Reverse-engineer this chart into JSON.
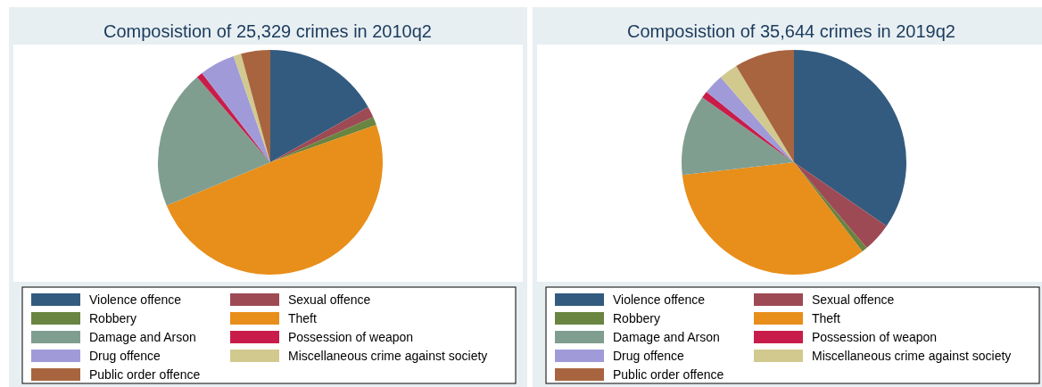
{
  "chart_data": [
    {
      "type": "pie",
      "title": "Composistion of 25,329 crimes in 2010q2",
      "legend": "bottom",
      "categories": [
        "Violence offence",
        "Sexual offence",
        "Robbery",
        "Theft",
        "Damage and Arson",
        "Possession of weapon",
        "Drug offence",
        "Miscellaneous crime against society",
        "Public order offence"
      ],
      "values": [
        16.8,
        1.6,
        1.2,
        49.1,
        20.0,
        0.9,
        5.1,
        1.1,
        4.2
      ],
      "colors": [
        "#335b7f",
        "#9e4a55",
        "#6a8441",
        "#e88e1a",
        "#7f9e90",
        "#c81d4a",
        "#a09bd8",
        "#d2c98e",
        "#a8643f"
      ]
    },
    {
      "type": "pie",
      "title": "Composistion of 35,644 crimes in 2019q2",
      "legend": "bottom",
      "categories": [
        "Violence offence",
        "Sexual offence",
        "Robbery",
        "Theft",
        "Damage and Arson",
        "Possession of weapon",
        "Drug offence",
        "Miscellaneous crime against society",
        "Public order offence"
      ],
      "values": [
        34.6,
        4.2,
        0.8,
        33.6,
        11.6,
        1.0,
        2.9,
        2.7,
        8.6
      ],
      "colors": [
        "#335b7f",
        "#9e4a55",
        "#6a8441",
        "#e88e1a",
        "#7f9e90",
        "#c81d4a",
        "#a09bd8",
        "#d2c98e",
        "#a8643f"
      ]
    }
  ]
}
